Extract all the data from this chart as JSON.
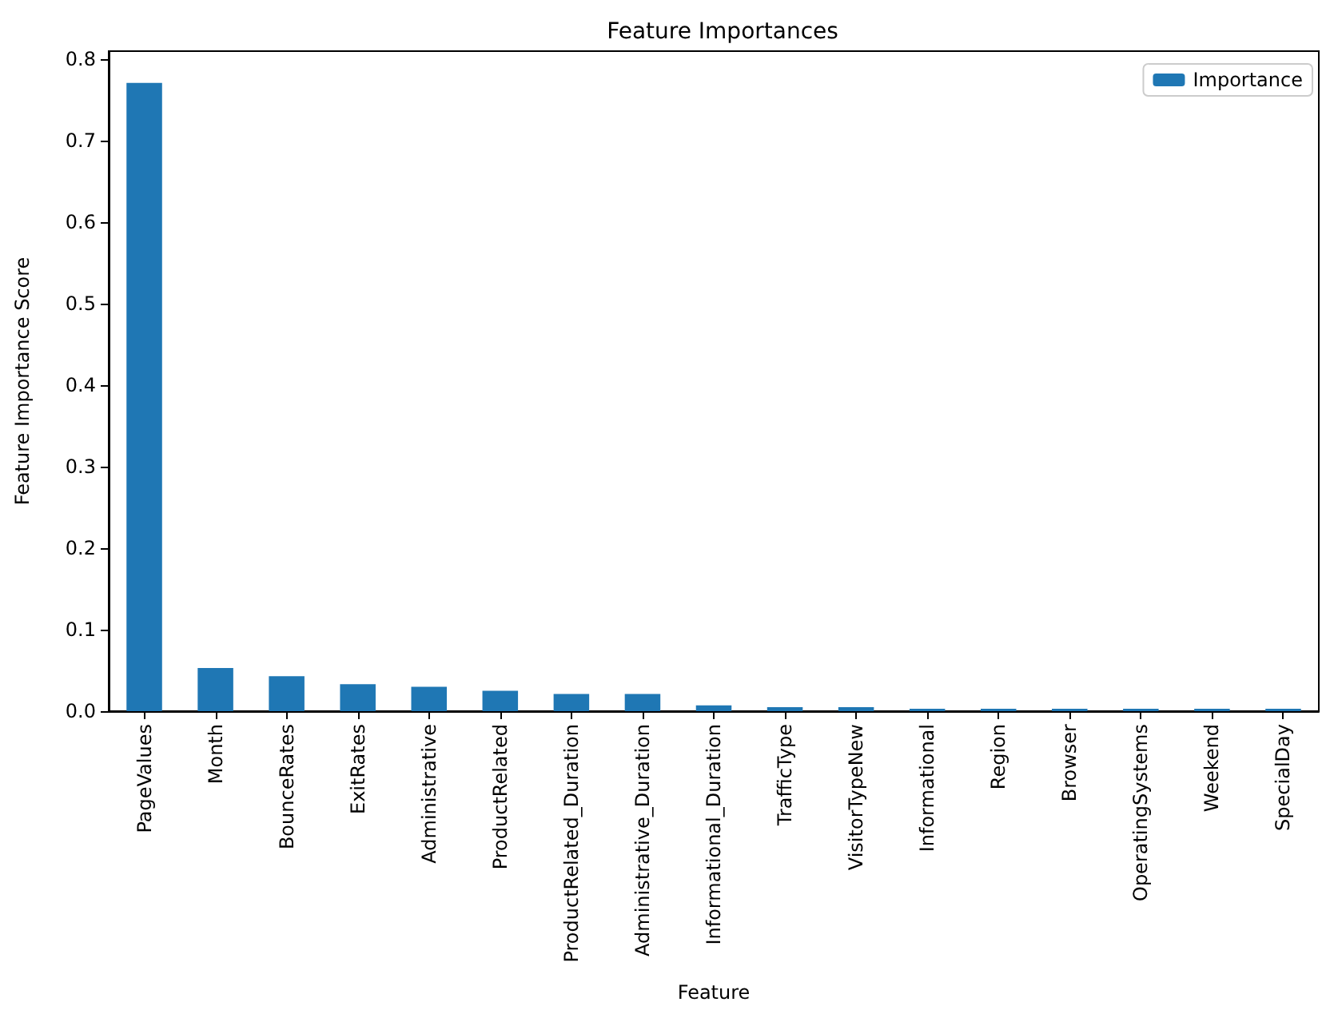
{
  "chart_data": {
    "type": "bar",
    "title": "Feature Importances",
    "xlabel": "Feature",
    "ylabel": "Feature Importance Score",
    "categories": [
      "PageValues",
      "Month",
      "BounceRates",
      "ExitRates",
      "Administrative",
      "ProductRelated",
      "ProductRelated_Duration",
      "Administrative_Duration",
      "Informational_Duration",
      "TrafficType",
      "VisitorTypeNew",
      "Informational",
      "Region",
      "Browser",
      "OperatingSystems",
      "Weekend",
      "SpecialDay"
    ],
    "series": [
      {
        "name": "Importance",
        "color": "#1f77b4",
        "values": [
          0.771,
          0.053,
          0.043,
          0.033,
          0.03,
          0.025,
          0.021,
          0.021,
          0.007,
          0.005,
          0.005,
          0.003,
          0.003,
          0.003,
          0.003,
          0.003,
          0.003
        ]
      }
    ],
    "ylim": [
      0,
      0.81
    ],
    "yticks": [
      {
        "value": 0,
        "label": "0.0"
      },
      0.1,
      0.2,
      0.3,
      0.4,
      0.5,
      0.6,
      0.7,
      0.8
    ],
    "grid": false,
    "legend": "top right"
  }
}
